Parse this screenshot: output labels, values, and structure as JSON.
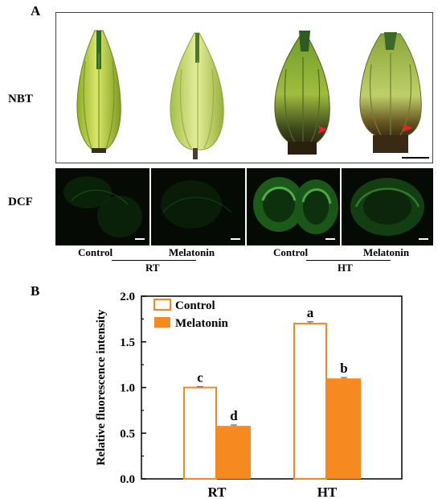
{
  "panel_a": {
    "letter": "A",
    "nbt_label": "NBT",
    "dcf_label": "DCF",
    "conditions": [
      "Control",
      "Melatonin",
      "Control",
      "Melatonin"
    ],
    "groups": [
      "RT",
      "HT"
    ]
  },
  "panel_b": {
    "letter": "B"
  },
  "colors": {
    "control_edge": "#f08a1c",
    "melatonin_fill": "#f6891f",
    "bud_green": "#a9c53a",
    "dcf_green": "#3aa035",
    "arrow_red": "#e8222c"
  },
  "chart_data": {
    "type": "bar",
    "title": "",
    "xlabel": "",
    "ylabel": "Relative fluorescence intensity",
    "categories": [
      "RT",
      "HT"
    ],
    "ylim": [
      0.0,
      2.0
    ],
    "yticks": [
      "0.0",
      "0.5",
      "1.0",
      "1.5",
      "2.0"
    ],
    "legend_position": "top-left",
    "series": [
      {
        "name": "Control",
        "style": "outline",
        "values": [
          1.0,
          1.7
        ],
        "errors": [
          0.01,
          0.02
        ],
        "letters": [
          "c",
          "a"
        ]
      },
      {
        "name": "Melatonin",
        "style": "filled",
        "values": [
          0.58,
          1.1
        ],
        "errors": [
          0.01,
          0.01
        ],
        "letters": [
          "d",
          "b"
        ]
      }
    ]
  }
}
